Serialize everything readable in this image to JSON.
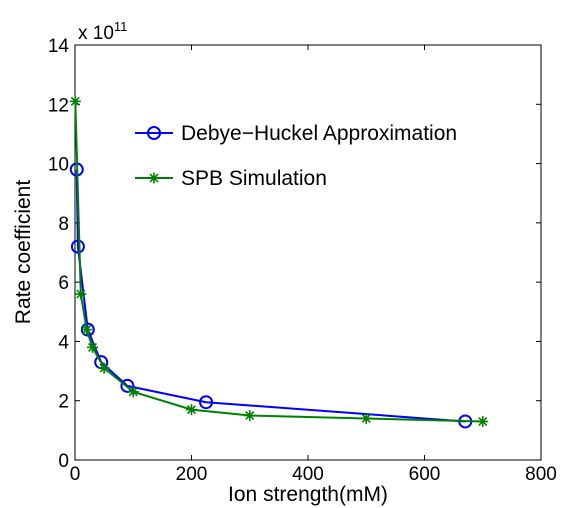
{
  "chart_data": {
    "type": "line",
    "xlabel": "Ion strength(mM)",
    "ylabel": "Rate coefficient",
    "y_multiplier": {
      "base": "x 10",
      "exponent": "11"
    },
    "xlim": [
      0,
      800
    ],
    "ylim": [
      0,
      14
    ],
    "xticks": [
      "0",
      "200",
      "400",
      "600",
      "800"
    ],
    "yticks": [
      "0",
      "2",
      "4",
      "6",
      "8",
      "10",
      "12",
      "14"
    ],
    "grid": false,
    "legend_position": "top-right",
    "series": [
      {
        "name": "Debye−Huckel Approximation",
        "color": "#0000ff",
        "marker": "circle",
        "x": [
          3,
          5,
          22,
          45,
          90,
          225,
          670
        ],
        "y": [
          9.8,
          7.2,
          4.4,
          3.3,
          2.5,
          1.95,
          1.3
        ]
      },
      {
        "name": "SPB Simulation",
        "color": "#008000",
        "marker": "star",
        "x": [
          0.5,
          10,
          20,
          30,
          50,
          100,
          200,
          300,
          500,
          700
        ],
        "y": [
          12.1,
          5.6,
          4.4,
          3.8,
          3.1,
          2.3,
          1.7,
          1.5,
          1.4,
          1.3
        ]
      }
    ]
  }
}
